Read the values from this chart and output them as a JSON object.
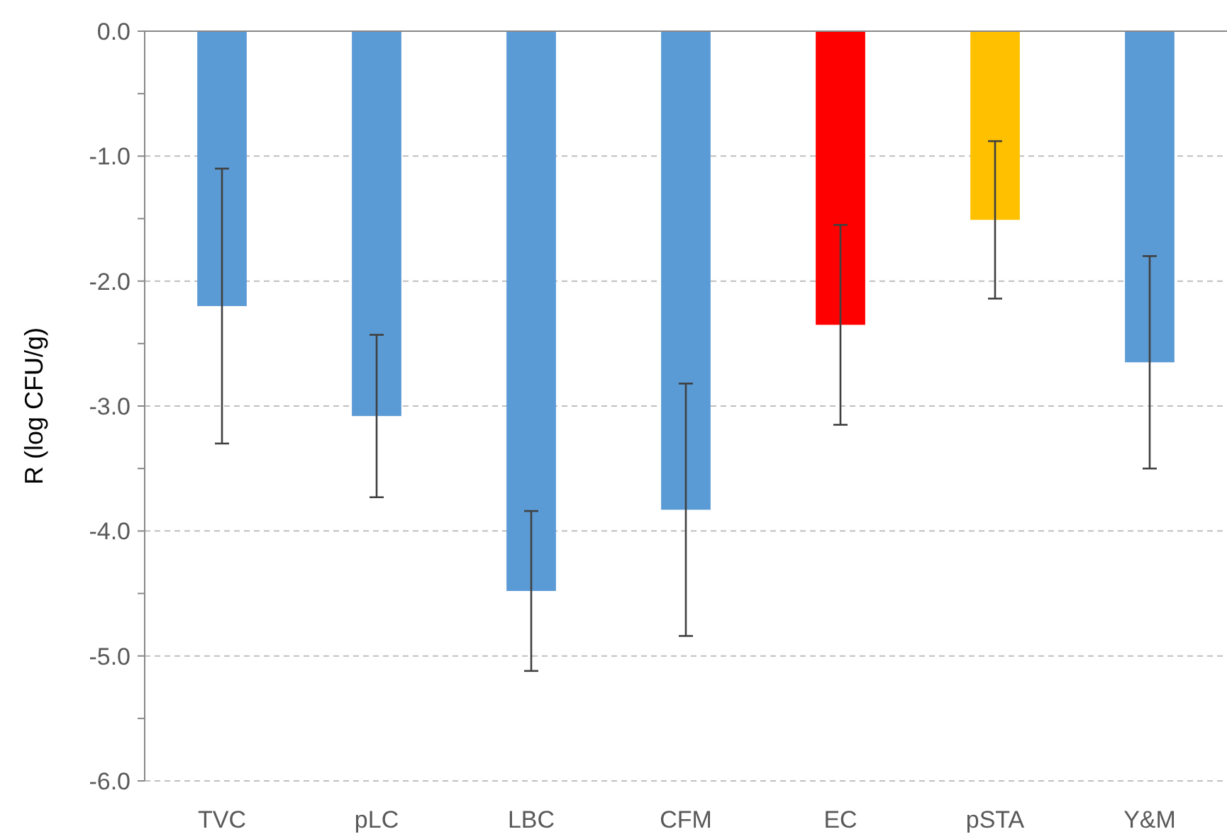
{
  "chart_data": {
    "type": "bar",
    "ylabel": "R  (log CFU/g)",
    "categories": [
      "TVC",
      "pLC",
      "LBC",
      "CFM",
      "EC",
      "pSTA",
      "Y&M"
    ],
    "values": [
      -2.2,
      -3.08,
      -4.48,
      -3.83,
      -2.35,
      -1.51,
      -2.65
    ],
    "errors": [
      1.1,
      0.65,
      0.64,
      1.01,
      0.8,
      0.63,
      0.85
    ],
    "colors": [
      "#5b9bd5",
      "#5b9bd5",
      "#5b9bd5",
      "#5b9bd5",
      "#ff0000",
      "#ffc000",
      "#5b9bd5"
    ],
    "ylim": [
      -6,
      0
    ],
    "yticks": [
      {
        "value": -6,
        "label": "-6.0"
      },
      {
        "value": -5.5,
        "label": null
      },
      {
        "value": -5,
        "label": "-5.0"
      },
      {
        "value": -4.5,
        "label": null
      },
      {
        "value": -4,
        "label": "-4.0"
      },
      {
        "value": -3.5,
        "label": null
      },
      {
        "value": -3,
        "label": "-3.0"
      },
      {
        "value": -2.5,
        "label": null
      },
      {
        "value": -2,
        "label": "-2.0"
      },
      {
        "value": -1.5,
        "label": null
      },
      {
        "value": -1,
        "label": "-1.0"
      },
      {
        "value": -0.5,
        "label": null
      },
      {
        "value": 0,
        "label": "0.0"
      }
    ],
    "grid": "y"
  }
}
